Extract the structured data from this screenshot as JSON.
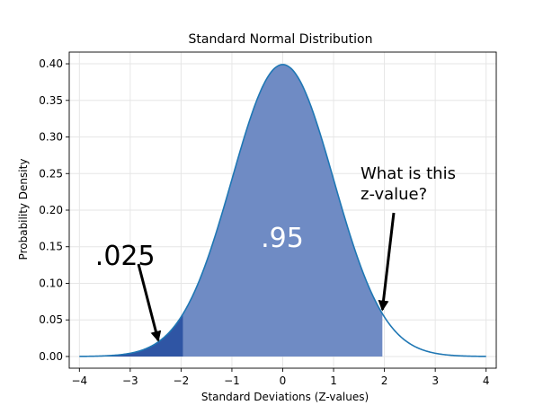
{
  "chart_data": {
    "type": "area",
    "title": "Standard Normal Distribution",
    "xlabel": "Standard Deviations (Z-values)",
    "ylabel": "Probability Density",
    "xlim": [
      -4.2,
      4.2
    ],
    "ylim": [
      -0.016,
      0.416
    ],
    "grid": true,
    "x_ticks": [
      -4,
      -3,
      -2,
      -1,
      0,
      1,
      2,
      3,
      4
    ],
    "x_tick_labels": [
      "−4",
      "−3",
      "−2",
      "−1",
      "0",
      "1",
      "2",
      "3",
      "4"
    ],
    "y_ticks": [
      0.0,
      0.05,
      0.1,
      0.15,
      0.2,
      0.25,
      0.3,
      0.35,
      0.4
    ],
    "y_tick_labels": [
      "0.00",
      "0.05",
      "0.10",
      "0.15",
      "0.20",
      "0.25",
      "0.30",
      "0.35",
      "0.40"
    ],
    "curve": {
      "function": "standard-normal-pdf",
      "x_range": [
        -4,
        4
      ],
      "color": "#1f77b4"
    },
    "shaded_regions": [
      {
        "x_range": [
          -1.96,
          1.96
        ],
        "color": "#6f8bc4",
        "label": ".95"
      },
      {
        "x_range": [
          -4,
          -1.96
        ],
        "color": "#2f55a4",
        "label": ".025"
      }
    ],
    "annotations": [
      {
        "text": ".025",
        "xy": [
          -2.45,
          0.022
        ],
        "xytext": [
          -3.1,
          0.125
        ]
      },
      {
        "text": "What is this\nz-value?",
        "xy": [
          1.96,
          0.064
        ],
        "xytext": [
          2.25,
          0.22
        ]
      }
    ],
    "center_label": {
      "text": ".95",
      "x": 0,
      "y": 0.158
    }
  }
}
